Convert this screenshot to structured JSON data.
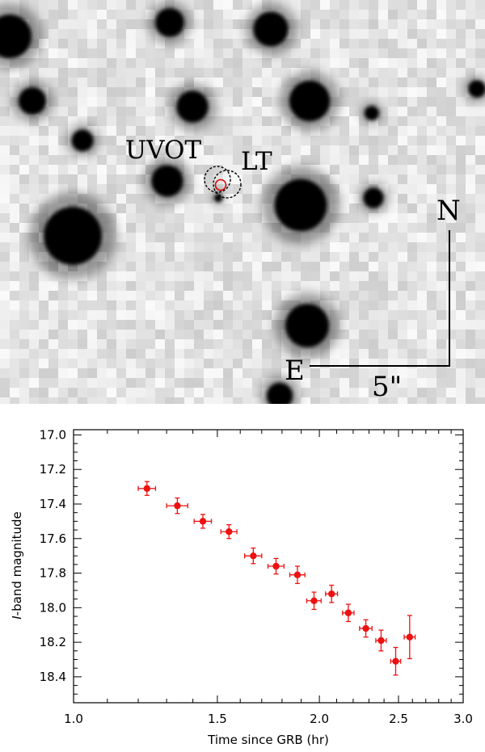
{
  "image_panel": {
    "labels": {
      "uvot": "UVOT",
      "lt": "LT",
      "north": "N",
      "east": "E",
      "scale": "5\""
    },
    "colors": {
      "sky": "#e6e6e6",
      "star": "#000000",
      "uvot_circle": "#000000",
      "lt_circle": "#000000",
      "marker_circle": "#dd0000"
    }
  },
  "chart_data": {
    "type": "scatter",
    "xlabel": "Time since GRB (hr)",
    "ylabel": "I-band magnitude",
    "ylabel_italic_part": "I",
    "ylabel_rest": "-band magnitude",
    "xscale": "log",
    "xlim": [
      1.0,
      3.0
    ],
    "ylim": [
      18.55,
      16.97
    ],
    "y_inverted": true,
    "x_ticks": [
      1.0,
      1.5,
      2.0,
      2.5,
      3.0
    ],
    "x_tick_labels": [
      "1.0",
      "1.5",
      "2.0",
      "2.5",
      "3.0"
    ],
    "y_ticks": [
      17.0,
      17.2,
      17.4,
      17.6,
      17.8,
      18.0,
      18.2,
      18.4
    ],
    "y_tick_labels": [
      "17.0",
      "17.2",
      "17.4",
      "17.6",
      "17.8",
      "18.0",
      "18.2",
      "18.4"
    ],
    "grid": false,
    "color": "#ee1111",
    "series": [
      {
        "points": [
          {
            "x": 1.23,
            "y": 17.31,
            "xerr": 0.03,
            "yerr": 0.04
          },
          {
            "x": 1.34,
            "y": 17.41,
            "xerr": 0.04,
            "yerr": 0.045
          },
          {
            "x": 1.44,
            "y": 17.5,
            "xerr": 0.035,
            "yerr": 0.04
          },
          {
            "x": 1.55,
            "y": 17.56,
            "xerr": 0.035,
            "yerr": 0.04
          },
          {
            "x": 1.66,
            "y": 17.7,
            "xerr": 0.04,
            "yerr": 0.045
          },
          {
            "x": 1.77,
            "y": 17.76,
            "xerr": 0.04,
            "yerr": 0.045
          },
          {
            "x": 1.88,
            "y": 17.81,
            "xerr": 0.04,
            "yerr": 0.05
          },
          {
            "x": 1.97,
            "y": 17.96,
            "xerr": 0.04,
            "yerr": 0.05
          },
          {
            "x": 2.07,
            "y": 17.92,
            "xerr": 0.035,
            "yerr": 0.05
          },
          {
            "x": 2.17,
            "y": 18.03,
            "xerr": 0.035,
            "yerr": 0.05
          },
          {
            "x": 2.28,
            "y": 18.12,
            "xerr": 0.04,
            "yerr": 0.05
          },
          {
            "x": 2.38,
            "y": 18.19,
            "xerr": 0.035,
            "yerr": 0.06
          },
          {
            "x": 2.48,
            "y": 18.31,
            "xerr": 0.035,
            "yerr": 0.08
          },
          {
            "x": 2.58,
            "y": 18.17,
            "xerr": 0.04,
            "yerr": 0.125
          }
        ]
      }
    ]
  }
}
